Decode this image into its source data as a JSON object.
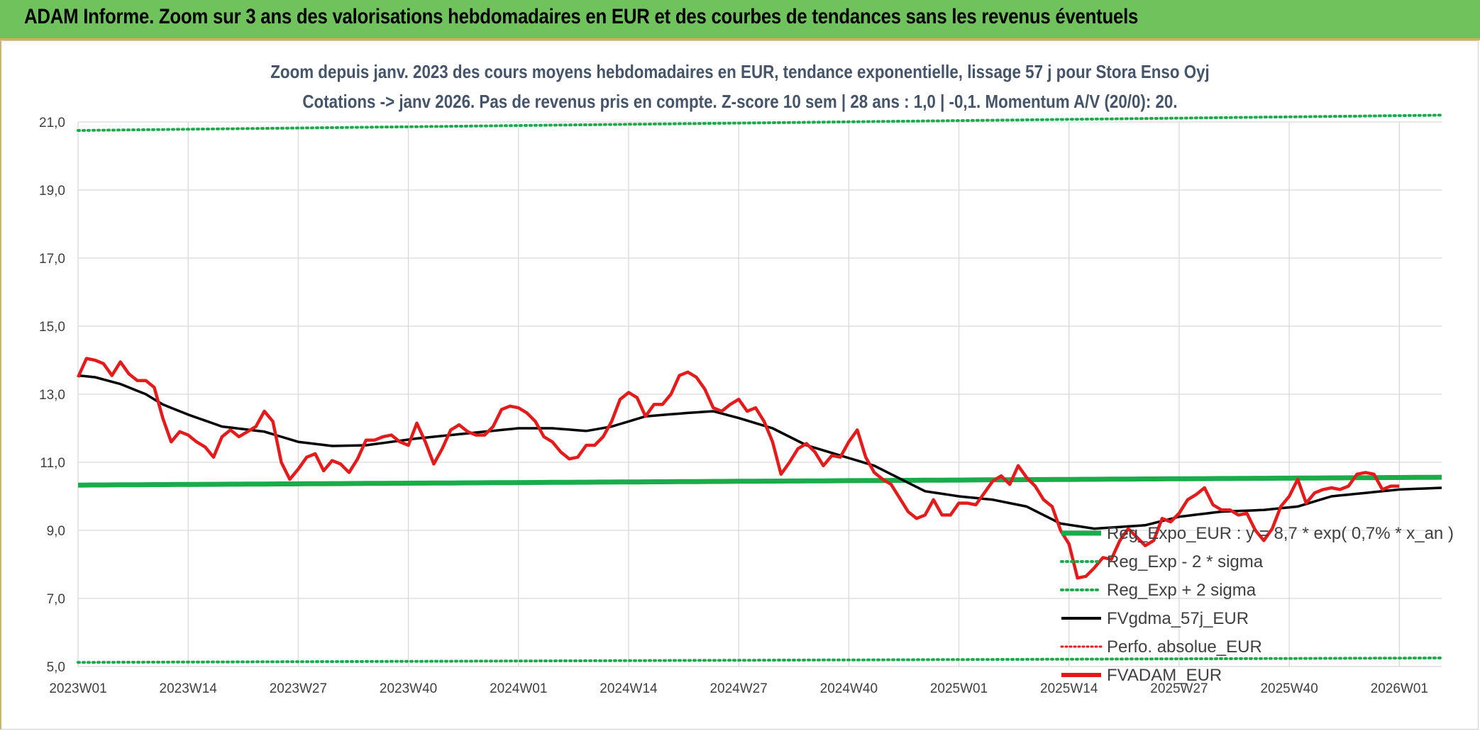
{
  "header": {
    "title": "ADAM Informe. Zoom sur 3 ans des valorisations hebdomadaires en EUR et des courbes de tendances sans les revenus éventuels"
  },
  "colors": {
    "header_bg": "#70c35c",
    "green": "#1aab4a",
    "black": "#000000",
    "red": "#e51a1a",
    "grid": "#d9d9d9"
  },
  "chart_data": {
    "type": "line",
    "title_line1": "Zoom depuis janv. 2023 des cours moyens hebdomadaires en EUR, tendance exponentielle, lissage 57 j pour Stora Enso Oyj",
    "title_line2": "Cotations -> janv 2026. Pas de revenus pris en compte. Z-score 10 sem | 28 ans : 1,0 | -0,1. Momentum A/V (20/0): 20.",
    "ylim": [
      5,
      21
    ],
    "y_ticks": [
      "5,0",
      "7,0",
      "9,0",
      "11,0",
      "13,0",
      "15,0",
      "17,0",
      "19,0",
      "21,0"
    ],
    "y_tick_values": [
      5,
      7,
      9,
      11,
      13,
      15,
      17,
      19,
      21
    ],
    "x_ticks": [
      "2023W01",
      "2023W14",
      "2023W27",
      "2023W40",
      "2024W01",
      "2024W14",
      "2024W27",
      "2024W40",
      "2025W01",
      "2025W14",
      "2025W27",
      "2025W40",
      "2026W01"
    ],
    "x_tick_index": [
      0,
      13,
      26,
      39,
      52,
      65,
      78,
      91,
      104,
      117,
      130,
      143,
      156
    ],
    "n_points": 162,
    "legend": [
      {
        "label": "Reg_Expo_EUR : y = 8,7 * exp( 0,7% * x_an )",
        "style": "green-solid"
      },
      {
        "label": "Reg_Exp - 2 * sigma",
        "style": "green-dotted"
      },
      {
        "label": "Reg_Exp + 2 sigma",
        "style": "green-dotted"
      },
      {
        "label": "FVgdma_57j_EUR",
        "style": "black-solid"
      },
      {
        "label": "Perfo. absolue_EUR",
        "style": "red-dotted"
      },
      {
        "label": "FVADAM_EUR",
        "style": "red-solid"
      }
    ],
    "series": [
      {
        "name": "Reg_Expo_EUR",
        "start": 10.33,
        "end": 10.56
      },
      {
        "name": "Reg_Exp - 2 * sigma",
        "start": 5.12,
        "end": 5.25
      },
      {
        "name": "Reg_Exp + 2 sigma",
        "start": 20.75,
        "end": 21.2
      },
      {
        "name": "FVgdma_57j_EUR",
        "keypoints": [
          [
            0,
            13.55
          ],
          [
            2,
            13.5
          ],
          [
            5,
            13.3
          ],
          [
            8,
            13.0
          ],
          [
            10,
            12.7
          ],
          [
            13,
            12.4
          ],
          [
            17,
            12.05
          ],
          [
            22,
            11.9
          ],
          [
            26,
            11.6
          ],
          [
            30,
            11.48
          ],
          [
            34,
            11.5
          ],
          [
            40,
            11.7
          ],
          [
            46,
            11.85
          ],
          [
            50,
            11.95
          ],
          [
            52,
            12.0
          ],
          [
            56,
            12.0
          ],
          [
            60,
            11.92
          ],
          [
            63,
            12.05
          ],
          [
            67,
            12.35
          ],
          [
            72,
            12.45
          ],
          [
            75,
            12.5
          ],
          [
            78,
            12.3
          ],
          [
            82,
            12.0
          ],
          [
            86,
            11.5
          ],
          [
            90,
            11.2
          ],
          [
            94,
            10.9
          ],
          [
            98,
            10.4
          ],
          [
            100,
            10.15
          ],
          [
            104,
            10.0
          ],
          [
            108,
            9.9
          ],
          [
            112,
            9.7
          ],
          [
            116,
            9.2
          ],
          [
            120,
            9.05
          ],
          [
            126,
            9.15
          ],
          [
            130,
            9.4
          ],
          [
            135,
            9.55
          ],
          [
            140,
            9.6
          ],
          [
            144,
            9.7
          ],
          [
            148,
            10.0
          ],
          [
            152,
            10.1
          ],
          [
            156,
            10.2
          ],
          [
            161,
            10.25
          ]
        ]
      },
      {
        "name": "FVADAM_EUR",
        "keypoints": [
          [
            0,
            13.5
          ],
          [
            1,
            14.05
          ],
          [
            2,
            14.0
          ],
          [
            3,
            13.9
          ],
          [
            4,
            13.55
          ],
          [
            5,
            13.95
          ],
          [
            6,
            13.6
          ],
          [
            7,
            13.4
          ],
          [
            8,
            13.4
          ],
          [
            9,
            13.2
          ],
          [
            10,
            12.3
          ],
          [
            11,
            11.6
          ],
          [
            12,
            11.9
          ],
          [
            13,
            11.8
          ],
          [
            14,
            11.6
          ],
          [
            15,
            11.45
          ],
          [
            16,
            11.15
          ],
          [
            17,
            11.75
          ],
          [
            18,
            11.95
          ],
          [
            19,
            11.75
          ],
          [
            20,
            11.9
          ],
          [
            21,
            12.05
          ],
          [
            22,
            12.5
          ],
          [
            23,
            12.2
          ],
          [
            24,
            11.0
          ],
          [
            25,
            10.5
          ],
          [
            26,
            10.8
          ],
          [
            27,
            11.15
          ],
          [
            28,
            11.25
          ],
          [
            29,
            10.75
          ],
          [
            30,
            11.05
          ],
          [
            31,
            10.95
          ],
          [
            32,
            10.7
          ],
          [
            33,
            11.1
          ],
          [
            34,
            11.65
          ],
          [
            35,
            11.65
          ],
          [
            36,
            11.75
          ],
          [
            37,
            11.8
          ],
          [
            38,
            11.6
          ],
          [
            39,
            11.5
          ],
          [
            40,
            12.15
          ],
          [
            41,
            11.6
          ],
          [
            42,
            10.95
          ],
          [
            43,
            11.4
          ],
          [
            44,
            11.95
          ],
          [
            45,
            12.1
          ],
          [
            46,
            11.9
          ],
          [
            47,
            11.8
          ],
          [
            48,
            11.8
          ],
          [
            49,
            12.05
          ],
          [
            50,
            12.55
          ],
          [
            51,
            12.65
          ],
          [
            52,
            12.6
          ],
          [
            53,
            12.45
          ],
          [
            54,
            12.2
          ],
          [
            55,
            11.75
          ],
          [
            56,
            11.6
          ],
          [
            57,
            11.3
          ],
          [
            58,
            11.1
          ],
          [
            59,
            11.15
          ],
          [
            60,
            11.5
          ],
          [
            61,
            11.5
          ],
          [
            62,
            11.75
          ],
          [
            63,
            12.2
          ],
          [
            64,
            12.85
          ],
          [
            65,
            13.05
          ],
          [
            66,
            12.9
          ],
          [
            67,
            12.35
          ],
          [
            68,
            12.7
          ],
          [
            69,
            12.7
          ],
          [
            70,
            13.0
          ],
          [
            71,
            13.55
          ],
          [
            72,
            13.65
          ],
          [
            73,
            13.5
          ],
          [
            74,
            13.15
          ],
          [
            75,
            12.6
          ],
          [
            76,
            12.5
          ],
          [
            77,
            12.7
          ],
          [
            78,
            12.85
          ],
          [
            79,
            12.5
          ],
          [
            80,
            12.6
          ],
          [
            81,
            12.2
          ],
          [
            82,
            11.6
          ],
          [
            83,
            10.65
          ],
          [
            84,
            11.0
          ],
          [
            85,
            11.4
          ],
          [
            86,
            11.55
          ],
          [
            87,
            11.3
          ],
          [
            88,
            10.9
          ],
          [
            89,
            11.2
          ],
          [
            90,
            11.15
          ],
          [
            91,
            11.6
          ],
          [
            92,
            11.95
          ],
          [
            93,
            11.15
          ],
          [
            94,
            10.7
          ],
          [
            95,
            10.5
          ],
          [
            96,
            10.35
          ],
          [
            97,
            9.95
          ],
          [
            98,
            9.55
          ],
          [
            99,
            9.35
          ],
          [
            100,
            9.45
          ],
          [
            101,
            9.9
          ],
          [
            102,
            9.45
          ],
          [
            103,
            9.45
          ],
          [
            104,
            9.8
          ],
          [
            105,
            9.8
          ],
          [
            106,
            9.75
          ],
          [
            107,
            10.1
          ],
          [
            108,
            10.45
          ],
          [
            109,
            10.6
          ],
          [
            110,
            10.35
          ],
          [
            111,
            10.9
          ],
          [
            112,
            10.55
          ],
          [
            113,
            10.3
          ],
          [
            114,
            9.9
          ],
          [
            115,
            9.7
          ],
          [
            116,
            9.0
          ],
          [
            117,
            8.6
          ],
          [
            118,
            7.6
          ],
          [
            119,
            7.65
          ],
          [
            120,
            7.9
          ],
          [
            121,
            8.2
          ],
          [
            122,
            8.15
          ],
          [
            123,
            8.7
          ],
          [
            124,
            9.05
          ],
          [
            125,
            8.8
          ],
          [
            126,
            8.55
          ],
          [
            127,
            8.7
          ],
          [
            128,
            9.35
          ],
          [
            129,
            9.25
          ],
          [
            130,
            9.5
          ],
          [
            131,
            9.9
          ],
          [
            132,
            10.05
          ],
          [
            133,
            10.25
          ],
          [
            134,
            9.75
          ],
          [
            135,
            9.6
          ],
          [
            136,
            9.6
          ],
          [
            137,
            9.45
          ],
          [
            138,
            9.5
          ],
          [
            139,
            9.0
          ],
          [
            140,
            8.7
          ],
          [
            141,
            9.05
          ],
          [
            142,
            9.7
          ],
          [
            143,
            10.0
          ],
          [
            144,
            10.5
          ],
          [
            145,
            9.8
          ],
          [
            146,
            10.1
          ],
          [
            147,
            10.2
          ],
          [
            148,
            10.25
          ],
          [
            149,
            10.2
          ],
          [
            150,
            10.3
          ],
          [
            151,
            10.65
          ],
          [
            152,
            10.7
          ],
          [
            153,
            10.65
          ],
          [
            154,
            10.2
          ],
          [
            155,
            10.3
          ],
          [
            156,
            10.3
          ]
        ]
      }
    ]
  }
}
